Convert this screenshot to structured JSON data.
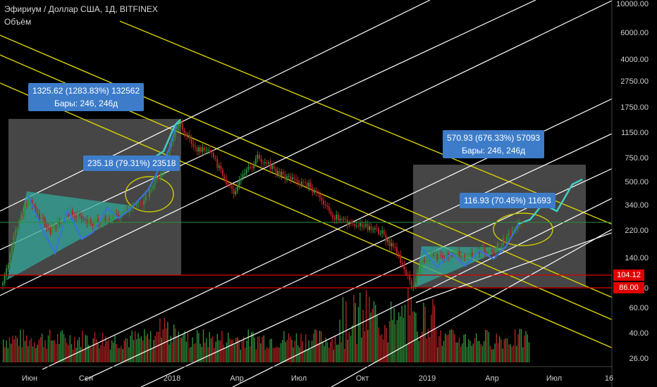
{
  "header": {
    "title": "Эфириум / Доллар США, 1Д, BITFINEX",
    "subtitle": "Объём"
  },
  "colors": {
    "background": "#000000",
    "yellow_channel": "#d9d000",
    "white_channel": "#ffffff",
    "pattern_fill": "#31a79a",
    "blue_arrows": "#3a72d9",
    "callout_bg": "#3d7cc9",
    "range_box": "#7f7f7f",
    "red_level": "#e00000",
    "green_level": "#2f8f3a",
    "candle_up": "#2f8f3a",
    "candle_down": "#b22222",
    "ellipse": "#c6c600"
  },
  "chart_data": {
    "type": "candlestick",
    "scale": "log",
    "y_ticks": [
      "10000.00",
      "6000.00",
      "4000.00",
      "2750.00",
      "1750.00",
      "1150.00",
      "750.00",
      "500.00",
      "340.00",
      "220.00",
      "140.00",
      "86.00",
      "60.00",
      "40.00",
      "26.00"
    ],
    "x_ticks": [
      "Июн",
      "Сен",
      "2018",
      "Апр",
      "Июл",
      "Окт",
      "2019",
      "Апр",
      "Июл",
      "16"
    ],
    "price_levels": [
      {
        "label": "104.12",
        "value": 104.12,
        "color": "red"
      },
      {
        "label": "86.00",
        "value": 86.0,
        "color": "red"
      }
    ],
    "callouts": [
      {
        "line1": "1325.62 (1283.83%) 132562",
        "line2": "Бары: 246, 246д"
      },
      {
        "line1": "235.18 (79.31%) 23518",
        "line2": ""
      },
      {
        "line1": "570.93 (676.33%) 57093",
        "line2": "Бары: 246, 246д"
      },
      {
        "line1": "116.93 (70.45%) 11693",
        "line2": ""
      }
    ],
    "approx_close_path": [
      {
        "t": "2017-05",
        "price": 90
      },
      {
        "t": "2017-06",
        "price": 380
      },
      {
        "t": "2017-07",
        "price": 200
      },
      {
        "t": "2017-08",
        "price": 300
      },
      {
        "t": "2017-09",
        "price": 280
      },
      {
        "t": "2017-10",
        "price": 300
      },
      {
        "t": "2017-11",
        "price": 480
      },
      {
        "t": "2018-01",
        "price": 1380
      },
      {
        "t": "2018-02",
        "price": 850
      },
      {
        "t": "2018-04",
        "price": 420
      },
      {
        "t": "2018-05",
        "price": 750
      },
      {
        "t": "2018-07",
        "price": 470
      },
      {
        "t": "2018-09",
        "price": 200
      },
      {
        "t": "2018-11",
        "price": 170
      },
      {
        "t": "2018-12",
        "price": 86
      },
      {
        "t": "2019-01",
        "price": 150
      },
      {
        "t": "2019-03",
        "price": 140
      },
      {
        "t": "2019-05",
        "price": 260
      }
    ],
    "grid": false,
    "legend": "none"
  }
}
